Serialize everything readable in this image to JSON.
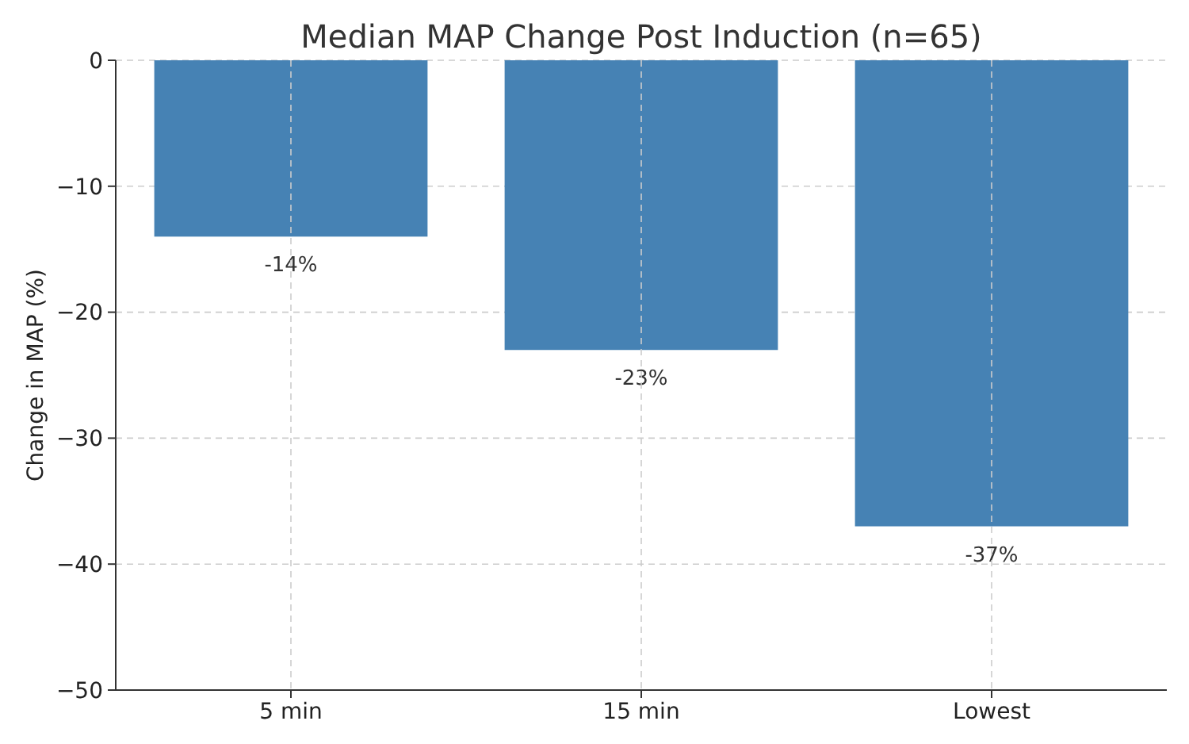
{
  "chart_data": {
    "type": "bar",
    "title": "Median MAP Change Post Induction (n=65)",
    "ylabel": "Change in MAP (%)",
    "categories": [
      "5 min",
      "15 min",
      "Lowest"
    ],
    "values": [
      -14,
      -23,
      -37
    ],
    "color": "#4682b4",
    "value_labels": [
      "-14%",
      "-23%",
      "-37%"
    ],
    "ylim": [
      -50,
      0
    ],
    "yticks": [
      {
        "value": -50,
        "label": "−50"
      },
      {
        "value": -40,
        "label": "−40"
      },
      {
        "value": -30,
        "label": "−30"
      },
      {
        "value": -20,
        "label": "−20"
      },
      {
        "value": -10,
        "label": "−10"
      },
      0
    ],
    "grid": true
  }
}
